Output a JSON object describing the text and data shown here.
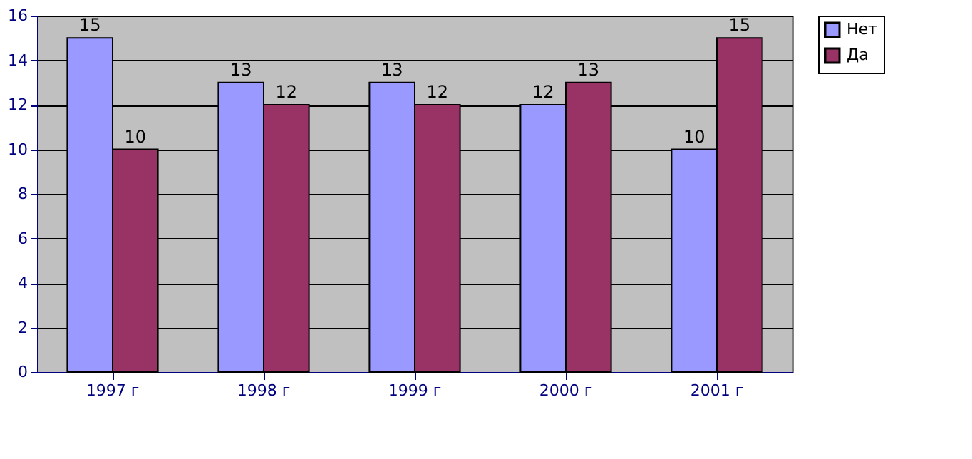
{
  "chart_data": {
    "type": "bar",
    "categories": [
      "1997 г",
      "1998 г",
      "1999 г",
      "2000 г",
      "2001 г"
    ],
    "series": [
      {
        "name": "Нет",
        "color": "#9999ff",
        "values": [
          15,
          13,
          13,
          12,
          10
        ]
      },
      {
        "name": "Да",
        "color": "#993366",
        "values": [
          10,
          12,
          12,
          13,
          15
        ]
      }
    ],
    "ylim": [
      0,
      16
    ],
    "yticks": [
      0,
      2,
      4,
      6,
      8,
      10,
      12,
      14,
      16
    ],
    "grid": "y",
    "legend": "right",
    "data_labels": true
  }
}
